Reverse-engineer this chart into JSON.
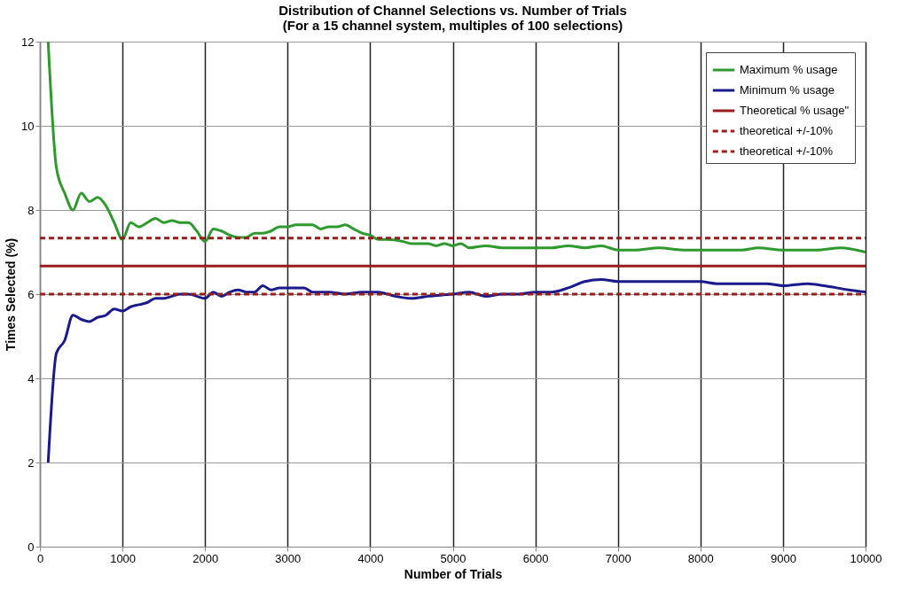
{
  "chart_data": {
    "type": "line",
    "title": "Distribution of Channel Selections vs. Number of Trials",
    "subtitle": "(For a 15 channel system, multiples of 100 selections)",
    "xlabel": "Number of Trials",
    "ylabel": "Times Selected (%)",
    "xlim": [
      0,
      10000
    ],
    "xticks": [
      0,
      1000,
      2000,
      3000,
      4000,
      5000,
      6000,
      7000,
      8000,
      9000,
      10000
    ],
    "ylim": [
      0,
      12
    ],
    "yticks": [
      0,
      2,
      4,
      6,
      8,
      10,
      12
    ],
    "grid": true,
    "legend": "top right",
    "line_style": "solid",
    "series": [
      {
        "name": "Maximum % usage",
        "color": "#2e9a2e",
        "x": [
          100,
          200,
          300,
          400,
          500,
          600,
          700,
          800,
          900,
          1000,
          1100,
          1200,
          1300,
          1400,
          1500,
          1600,
          1700,
          1800,
          1900,
          2000,
          2100,
          2200,
          2300,
          2400,
          2500,
          2600,
          2700,
          2800,
          2900,
          3000,
          3100,
          3200,
          3300,
          3400,
          3500,
          3600,
          3700,
          3800,
          3900,
          4000,
          4100,
          4200,
          4400,
          4500,
          4700,
          4800,
          4900,
          5000,
          5100,
          5200,
          5400,
          5600,
          5800,
          6000,
          6200,
          6400,
          6600,
          6800,
          7000,
          7200,
          7500,
          7800,
          8000,
          8200,
          8500,
          8700,
          9000,
          9200,
          9400,
          9700,
          10000
        ],
        "values": [
          12.0,
          9.0,
          8.4,
          8.0,
          8.4,
          8.2,
          8.3,
          8.1,
          7.7,
          7.3,
          7.7,
          7.6,
          7.7,
          7.8,
          7.7,
          7.75,
          7.7,
          7.7,
          7.5,
          7.25,
          7.55,
          7.5,
          7.4,
          7.35,
          7.35,
          7.45,
          7.45,
          7.5,
          7.6,
          7.6,
          7.65,
          7.65,
          7.65,
          7.55,
          7.6,
          7.6,
          7.65,
          7.55,
          7.45,
          7.4,
          7.3,
          7.3,
          7.25,
          7.2,
          7.2,
          7.15,
          7.2,
          7.15,
          7.2,
          7.1,
          7.15,
          7.1,
          7.1,
          7.1,
          7.1,
          7.15,
          7.1,
          7.15,
          7.05,
          7.05,
          7.1,
          7.05,
          7.05,
          7.05,
          7.05,
          7.1,
          7.05,
          7.05,
          7.05,
          7.1,
          7.0
        ]
      },
      {
        "name": "Minimum % usage",
        "color": "#1a1a8c",
        "x": [
          100,
          200,
          300,
          400,
          500,
          600,
          700,
          800,
          900,
          1000,
          1100,
          1200,
          1300,
          1400,
          1500,
          1600,
          1700,
          1800,
          2000,
          2100,
          2200,
          2300,
          2400,
          2500,
          2600,
          2700,
          2800,
          2900,
          3000,
          3200,
          3300,
          3500,
          3700,
          3900,
          4100,
          4300,
          4500,
          4700,
          5000,
          5200,
          5400,
          5600,
          5800,
          6000,
          6200,
          6400,
          6600,
          6800,
          7000,
          7200,
          7500,
          7800,
          8000,
          8200,
          8500,
          8800,
          9000,
          9300,
          9500,
          9800,
          10000
        ],
        "values": [
          2.0,
          4.6,
          4.9,
          5.5,
          5.4,
          5.35,
          5.45,
          5.5,
          5.65,
          5.6,
          5.7,
          5.75,
          5.8,
          5.9,
          5.9,
          5.95,
          6.0,
          6.0,
          5.9,
          6.05,
          5.95,
          6.05,
          6.1,
          6.05,
          6.05,
          6.2,
          6.1,
          6.15,
          6.15,
          6.15,
          6.05,
          6.05,
          6.0,
          6.05,
          6.05,
          5.95,
          5.9,
          5.95,
          6.0,
          6.05,
          5.95,
          6.0,
          6.0,
          6.05,
          6.05,
          6.15,
          6.3,
          6.35,
          6.3,
          6.3,
          6.3,
          6.3,
          6.3,
          6.25,
          6.25,
          6.25,
          6.2,
          6.25,
          6.2,
          6.1,
          6.05
        ]
      },
      {
        "name": "Theoretical % usage\"",
        "color": "#9b1c1c",
        "x": [
          0,
          10000
        ],
        "values": [
          6.67,
          6.67
        ]
      },
      {
        "name": "theoretical +/-10%",
        "color": "#9b1c1c",
        "line_style": "dashed",
        "x": [
          0,
          10000
        ],
        "values": [
          7.33,
          7.33
        ]
      },
      {
        "name": "theoretical +/-10%",
        "color": "#9b1c1c",
        "line_style": "dashed",
        "x": [
          0,
          10000
        ],
        "values": [
          6.0,
          6.0
        ]
      }
    ]
  }
}
